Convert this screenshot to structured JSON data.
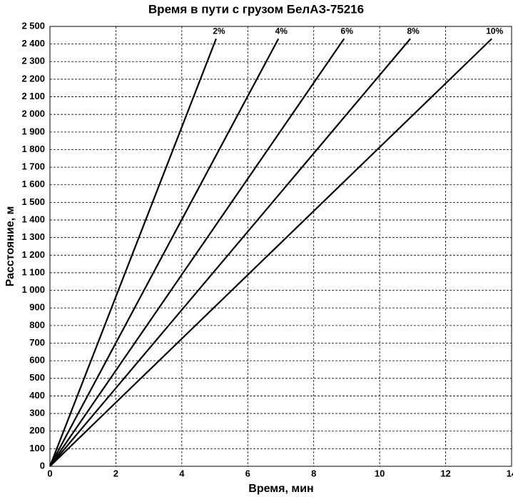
{
  "chart_data": {
    "type": "line",
    "title": "Время в пути с грузом БелАЗ-75216",
    "x_label": "Время, мин",
    "y_label": "Расстояние, м",
    "xlim": [
      0,
      14
    ],
    "xticks": [
      0,
      2,
      4,
      6,
      8,
      10,
      12,
      14
    ],
    "ylim": [
      0,
      2500
    ],
    "yticks": [
      0,
      100,
      200,
      300,
      400,
      500,
      600,
      700,
      800,
      900,
      {
        "value": 1000,
        "label": "1 000"
      },
      {
        "value": 1100,
        "label": "1 100"
      },
      {
        "value": 1200,
        "label": "1 200"
      },
      {
        "value": 1300,
        "label": "1 300"
      },
      {
        "value": 1400,
        "label": "1 400"
      },
      {
        "value": 1500,
        "label": "1 500"
      },
      {
        "value": 1600,
        "label": "1 600"
      },
      {
        "value": 1700,
        "label": "1 700"
      },
      {
        "value": 1800,
        "label": "1 800"
      },
      {
        "value": 1900,
        "label": "1 900"
      },
      {
        "value": 2000,
        "label": "2 000"
      },
      {
        "value": 2100,
        "label": "2 100"
      },
      {
        "value": 2200,
        "label": "2 200"
      },
      {
        "value": 2300,
        "label": "2 300"
      },
      {
        "value": 2400,
        "label": "2 400"
      },
      {
        "value": 2500,
        "label": "2 500"
      }
    ],
    "grid": true,
    "series": [
      {
        "name": "2%",
        "color": "#000000",
        "x": [
          0,
          5.04
        ],
        "values": [
          0,
          2430
        ]
      },
      {
        "name": "4%",
        "color": "#000000",
        "x": [
          0,
          6.93
        ],
        "values": [
          0,
          2430
        ]
      },
      {
        "name": "6%",
        "color": "#000000",
        "x": [
          0,
          8.92
        ],
        "values": [
          0,
          2430
        ]
      },
      {
        "name": "8%",
        "color": "#000000",
        "x": [
          0,
          10.93
        ],
        "values": [
          0,
          2430
        ]
      },
      {
        "name": "10%",
        "color": "#000000",
        "x": [
          0,
          13.4
        ],
        "values": [
          0,
          2430
        ]
      }
    ]
  }
}
